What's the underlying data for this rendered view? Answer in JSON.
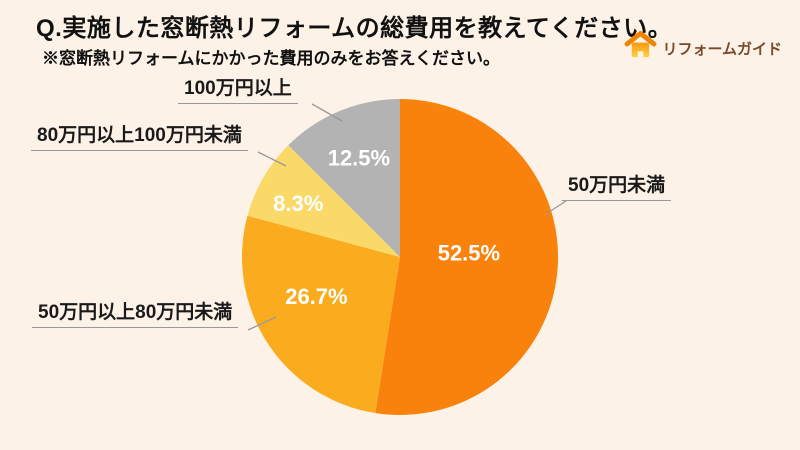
{
  "header": {
    "title": "Q.実施した窓断熱リフォームの総費用を教えてください。",
    "subtitle": "※窓断熱リフォームにかかった費用のみをお答えください。"
  },
  "logo": {
    "text": "リフォームガイド",
    "icon": "house-icon"
  },
  "chart_data": {
    "type": "pie",
    "title": "Q.実施した窓断熱リフォームの総費用を教えてください。",
    "categories": [
      "50万円未満",
      "50万円以上80万円未満",
      "80万円以上100万円未満",
      "100万円以上"
    ],
    "values": [
      52.5,
      26.7,
      8.3,
      12.5
    ],
    "value_labels": [
      "52.5%",
      "26.7%",
      "8.3%",
      "12.5%"
    ],
    "colors": [
      "#F8820B",
      "#FBAB1E",
      "#FBD968",
      "#B3B3B3"
    ],
    "unit": "%",
    "start_angle_deg": 0,
    "direction": "clockwise",
    "legend_position": "outside-callouts"
  },
  "colors": {
    "background": "#FCF2E7",
    "title_text": "#111111",
    "callout_text": "#1A1A1A",
    "callout_line": "#999999",
    "percent_text": "#FFFFFF",
    "logo_text": "#7B4A2B",
    "logo_orange": "#F08300",
    "logo_yellow": "#FFCF3F"
  }
}
